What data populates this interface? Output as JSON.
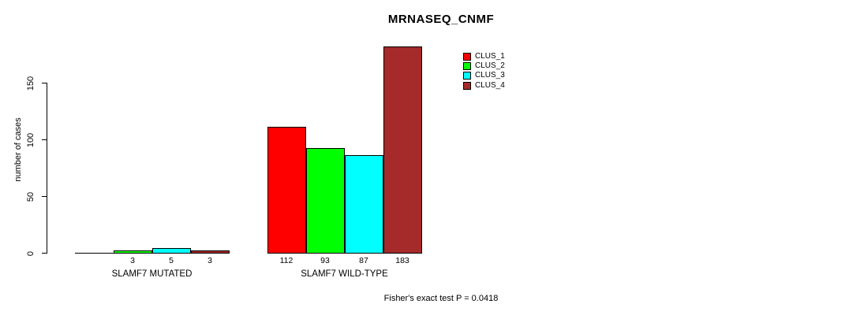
{
  "chart_data": {
    "type": "bar",
    "title": "MRNASEQ_CNMF",
    "ylabel": "number of cases",
    "xlabel": "",
    "categories": [
      "SLAMF7 MUTATED",
      "SLAMF7 WILD-TYPE"
    ],
    "series": [
      {
        "name": "CLUS_1",
        "color": "#FF0000",
        "values": [
          0,
          112
        ]
      },
      {
        "name": "CLUS_2",
        "color": "#00FF00",
        "values": [
          3,
          93
        ]
      },
      {
        "name": "CLUS_3",
        "color": "#00FFFF",
        "values": [
          5,
          87
        ]
      },
      {
        "name": "CLUS_4",
        "color": "#A52A2A",
        "values": [
          3,
          183
        ]
      }
    ],
    "y_ticks": [
      0,
      50,
      100,
      150
    ],
    "ylim": [
      0,
      183
    ],
    "grid": false,
    "bar_value_labels_shown": true,
    "zero_value_labels_hidden": true,
    "legend_position": "top-right",
    "annotation": "Fisher's exact test P = 0.0418"
  },
  "colors": {
    "background": "#FFFFFF",
    "foreground": "#000000",
    "bar_border": "#000000"
  }
}
